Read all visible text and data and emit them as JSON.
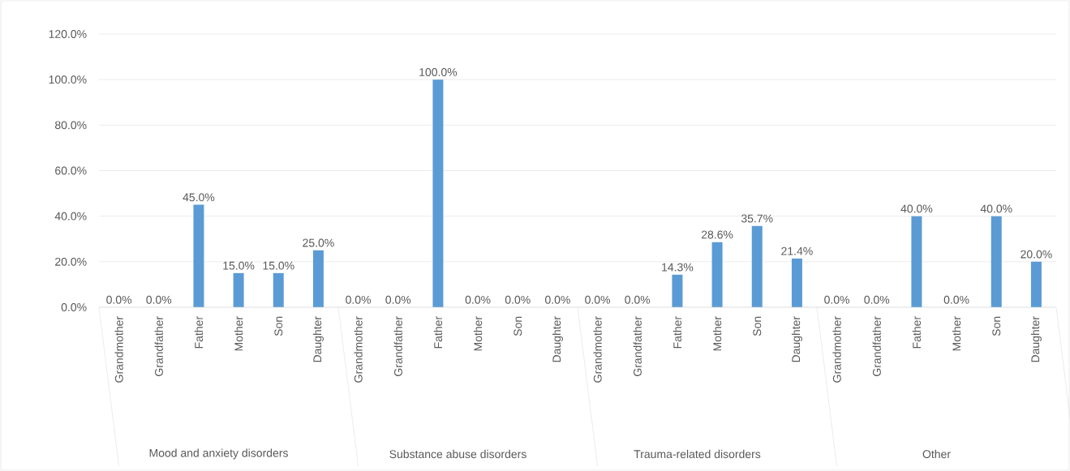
{
  "chart_data": {
    "type": "bar",
    "categories": [
      "Grandmother",
      "Grandfather",
      "Father",
      "Mother",
      "Son",
      "Daughter",
      "Grandmother",
      "Grandfather",
      "Father",
      "Mother",
      "Son",
      "Daughter",
      "Grandmother",
      "Grandfather",
      "Father",
      "Mother",
      "Son",
      "Daughter",
      "Grandmother",
      "Grandfather",
      "Father",
      "Mother",
      "Son",
      "Daughter"
    ],
    "values": [
      0,
      0,
      45,
      15,
      15,
      25,
      0,
      0,
      100,
      0,
      0,
      0,
      0,
      0,
      14.3,
      28.6,
      35.7,
      21.4,
      0,
      0,
      40,
      0,
      40,
      20
    ],
    "value_labels": [
      "0.0%",
      "0.0%",
      "45.0%",
      "15.0%",
      "15.0%",
      "25.0%",
      "0.0%",
      "0.0%",
      "100.0%",
      "0.0%",
      "0.0%",
      "0.0%",
      "0.0%",
      "0.0%",
      "14.3%",
      "28.6%",
      "35.7%",
      "21.4%",
      "0.0%",
      "0.0%",
      "40.0%",
      "0.0%",
      "40.0%",
      "20.0%"
    ],
    "color": "#5b9bd5",
    "annotations": [
      "Mood and anxiety disorders",
      "Substance abuse disorders",
      "Trauma-related disorders",
      "Other"
    ],
    "ylim": [
      0,
      120
    ],
    "yticks": [
      {
        "value": 0,
        "label": "0.0%"
      },
      {
        "value": 20,
        "label": "20.0%"
      },
      {
        "value": 40,
        "label": "40.0%"
      },
      {
        "value": 60,
        "label": "60.0%"
      },
      {
        "value": 80,
        "label": "80.0%"
      },
      {
        "value": 100,
        "label": "100.0%"
      },
      {
        "value": 120,
        "label": "120.0%"
      }
    ],
    "grid": "y"
  }
}
